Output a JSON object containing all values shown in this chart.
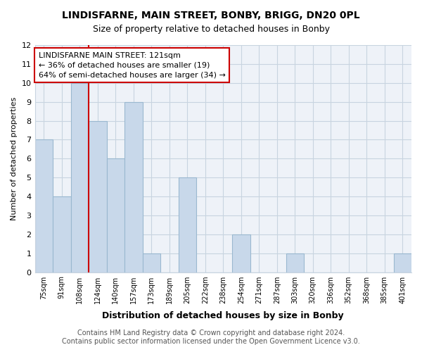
{
  "title": "LINDISFARNE, MAIN STREET, BONBY, BRIGG, DN20 0PL",
  "subtitle": "Size of property relative to detached houses in Bonby",
  "xlabel": "Distribution of detached houses by size in Bonby",
  "ylabel": "Number of detached properties",
  "bar_color": "#c8d8ea",
  "bar_edgecolor": "#9ab8d0",
  "bins": [
    "75sqm",
    "91sqm",
    "108sqm",
    "124sqm",
    "140sqm",
    "157sqm",
    "173sqm",
    "189sqm",
    "205sqm",
    "222sqm",
    "238sqm",
    "254sqm",
    "271sqm",
    "287sqm",
    "303sqm",
    "320sqm",
    "336sqm",
    "352sqm",
    "368sqm",
    "385sqm",
    "401sqm"
  ],
  "values": [
    7,
    4,
    10,
    8,
    6,
    9,
    1,
    0,
    5,
    0,
    0,
    2,
    0,
    0,
    1,
    0,
    0,
    0,
    0,
    0,
    1
  ],
  "ylim": [
    0,
    12
  ],
  "yticks": [
    0,
    1,
    2,
    3,
    4,
    5,
    6,
    7,
    8,
    9,
    10,
    11,
    12
  ],
  "annotation_box_text": "LINDISFARNE MAIN STREET: 121sqm\n← 36% of detached houses are smaller (19)\n64% of semi-detached houses are larger (34) →",
  "vline_color": "#cc0000",
  "background_color": "#ffffff",
  "plot_bg_color": "#eef2f8",
  "grid_color": "#c8d4e0",
  "footer": "Contains HM Land Registry data © Crown copyright and database right 2024.\nContains public sector information licensed under the Open Government Licence v3.0.",
  "title_fontsize": 10,
  "annotation_fontsize": 8,
  "footer_fontsize": 7,
  "vline_bin_index": 3
}
